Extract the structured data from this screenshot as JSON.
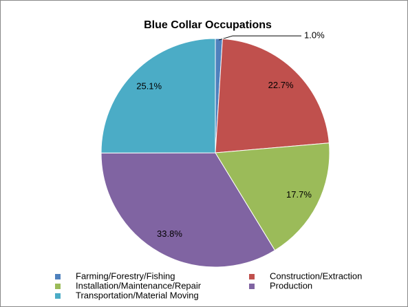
{
  "chart_data": {
    "type": "pie",
    "title": "Blue Collar Occupations",
    "categories": [
      "Farming/Forestry/Fishing",
      "Construction/Extraction",
      "Installation/Maintenance/Repair",
      "Production",
      "Transportation/Material Moving"
    ],
    "values": [
      1.0,
      22.7,
      17.7,
      33.8,
      25.1
    ],
    "value_labels": [
      "1.0%",
      "22.7%",
      "17.7%",
      "33.8%",
      "25.1%"
    ],
    "colors": [
      "#4f81bd",
      "#c0504d",
      "#9bbb59",
      "#8064a2",
      "#4bacc6"
    ],
    "legend": "bottom"
  }
}
